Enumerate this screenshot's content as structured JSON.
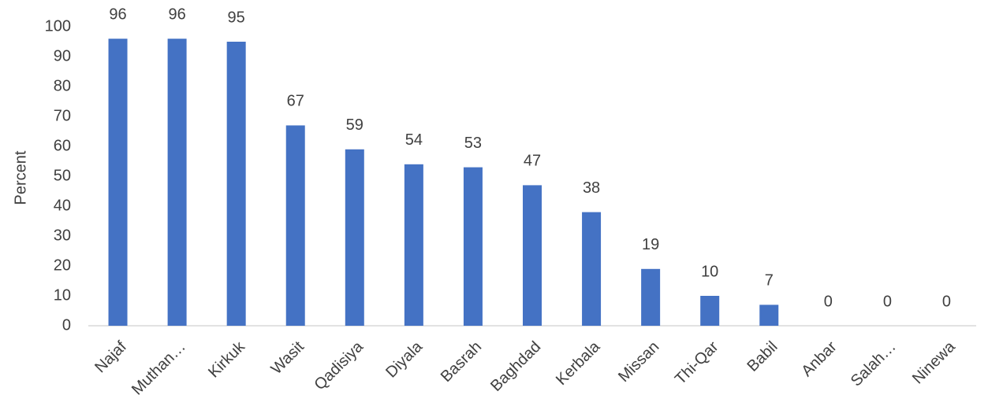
{
  "chart_data": {
    "type": "bar",
    "ylabel": "Percent",
    "categories": [
      "Najaf",
      "Muthan…",
      "Kirkuk",
      "Wasit",
      "Qadisiya",
      "Diyala",
      "Basrah",
      "Baghdad",
      "Kerbala",
      "Missan",
      "Thi-Qar",
      "Babil",
      "Anbar",
      "Salah…",
      "Ninewa"
    ],
    "values": [
      96,
      96,
      95,
      67,
      59,
      54,
      53,
      47,
      38,
      19,
      10,
      7,
      0,
      0,
      0
    ],
    "color": "#4472c4",
    "ylim": [
      0,
      100
    ],
    "yticks": [
      0,
      10,
      20,
      30,
      40,
      50,
      60,
      70,
      80,
      90,
      100
    ],
    "grid": false
  }
}
